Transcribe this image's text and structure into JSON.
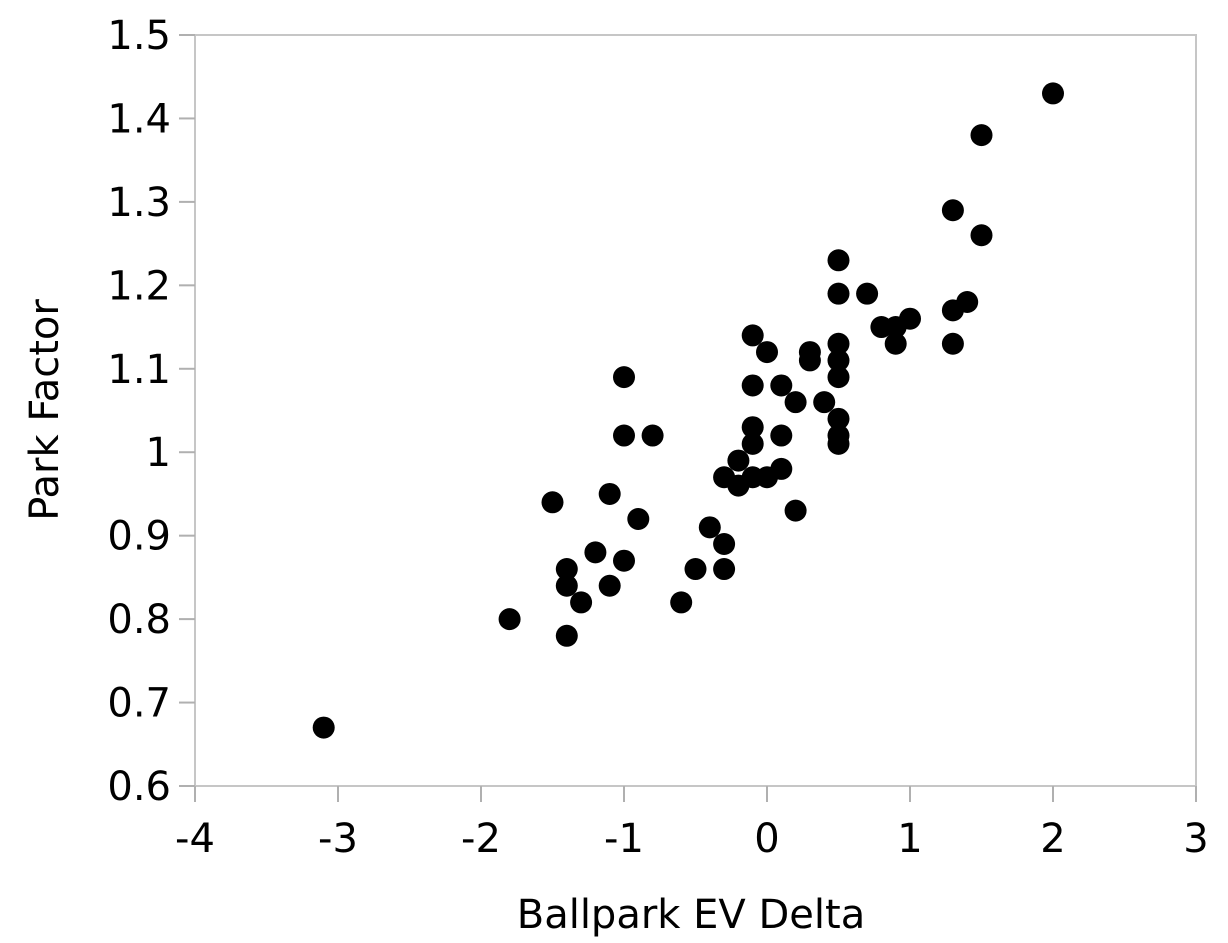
{
  "chart_data": {
    "type": "scatter",
    "xlabel": "Ballpark EV Delta",
    "ylabel": "Park Factor",
    "xlim": [
      -4,
      3
    ],
    "ylim": [
      0.6,
      1.5
    ],
    "x_ticks": [
      "-4",
      "-3",
      "-2",
      "-1",
      "0",
      "1",
      "2",
      "3"
    ],
    "y_ticks": [
      "0.6",
      "0.7",
      "0.8",
      "0.9",
      "1",
      "1.1",
      "1.2",
      "1.3",
      "1.4",
      "1.5"
    ],
    "grid": false,
    "marker_color": "#000000",
    "points": [
      [
        2.0,
        1.43
      ],
      [
        1.5,
        1.38
      ],
      [
        1.3,
        1.29
      ],
      [
        1.5,
        1.26
      ],
      [
        1.4,
        1.18
      ],
      [
        1.3,
        1.17
      ],
      [
        1.3,
        1.13
      ],
      [
        1.0,
        1.16
      ],
      [
        0.9,
        1.15
      ],
      [
        0.9,
        1.13
      ],
      [
        0.8,
        1.15
      ],
      [
        0.7,
        1.19
      ],
      [
        0.5,
        1.23
      ],
      [
        0.5,
        1.19
      ],
      [
        0.5,
        1.13
      ],
      [
        0.5,
        1.11
      ],
      [
        0.5,
        1.09
      ],
      [
        0.5,
        1.04
      ],
      [
        0.5,
        1.02
      ],
      [
        0.5,
        1.01
      ],
      [
        0.4,
        1.06
      ],
      [
        0.3,
        1.12
      ],
      [
        0.3,
        1.11
      ],
      [
        0.2,
        1.06
      ],
      [
        0.2,
        0.93
      ],
      [
        0.1,
        1.08
      ],
      [
        0.1,
        1.02
      ],
      [
        0.1,
        0.98
      ],
      [
        0.0,
        1.12
      ],
      [
        0.0,
        0.97
      ],
      [
        -0.1,
        1.14
      ],
      [
        -0.1,
        1.08
      ],
      [
        -0.1,
        1.03
      ],
      [
        -0.1,
        1.01
      ],
      [
        -0.1,
        0.97
      ],
      [
        -0.2,
        0.99
      ],
      [
        -0.2,
        0.96
      ],
      [
        -0.3,
        0.97
      ],
      [
        -0.3,
        0.89
      ],
      [
        -0.3,
        0.86
      ],
      [
        -0.4,
        0.91
      ],
      [
        -0.5,
        0.86
      ],
      [
        -0.6,
        0.82
      ],
      [
        -0.8,
        1.02
      ],
      [
        -0.9,
        0.92
      ],
      [
        -1.0,
        1.09
      ],
      [
        -1.0,
        1.02
      ],
      [
        -1.0,
        0.87
      ],
      [
        -1.1,
        0.95
      ],
      [
        -1.1,
        0.84
      ],
      [
        -1.2,
        0.88
      ],
      [
        -1.3,
        0.82
      ],
      [
        -1.4,
        0.86
      ],
      [
        -1.4,
        0.84
      ],
      [
        -1.4,
        0.78
      ],
      [
        -1.5,
        0.94
      ],
      [
        -1.8,
        0.8
      ],
      [
        -3.1,
        0.67
      ]
    ]
  }
}
